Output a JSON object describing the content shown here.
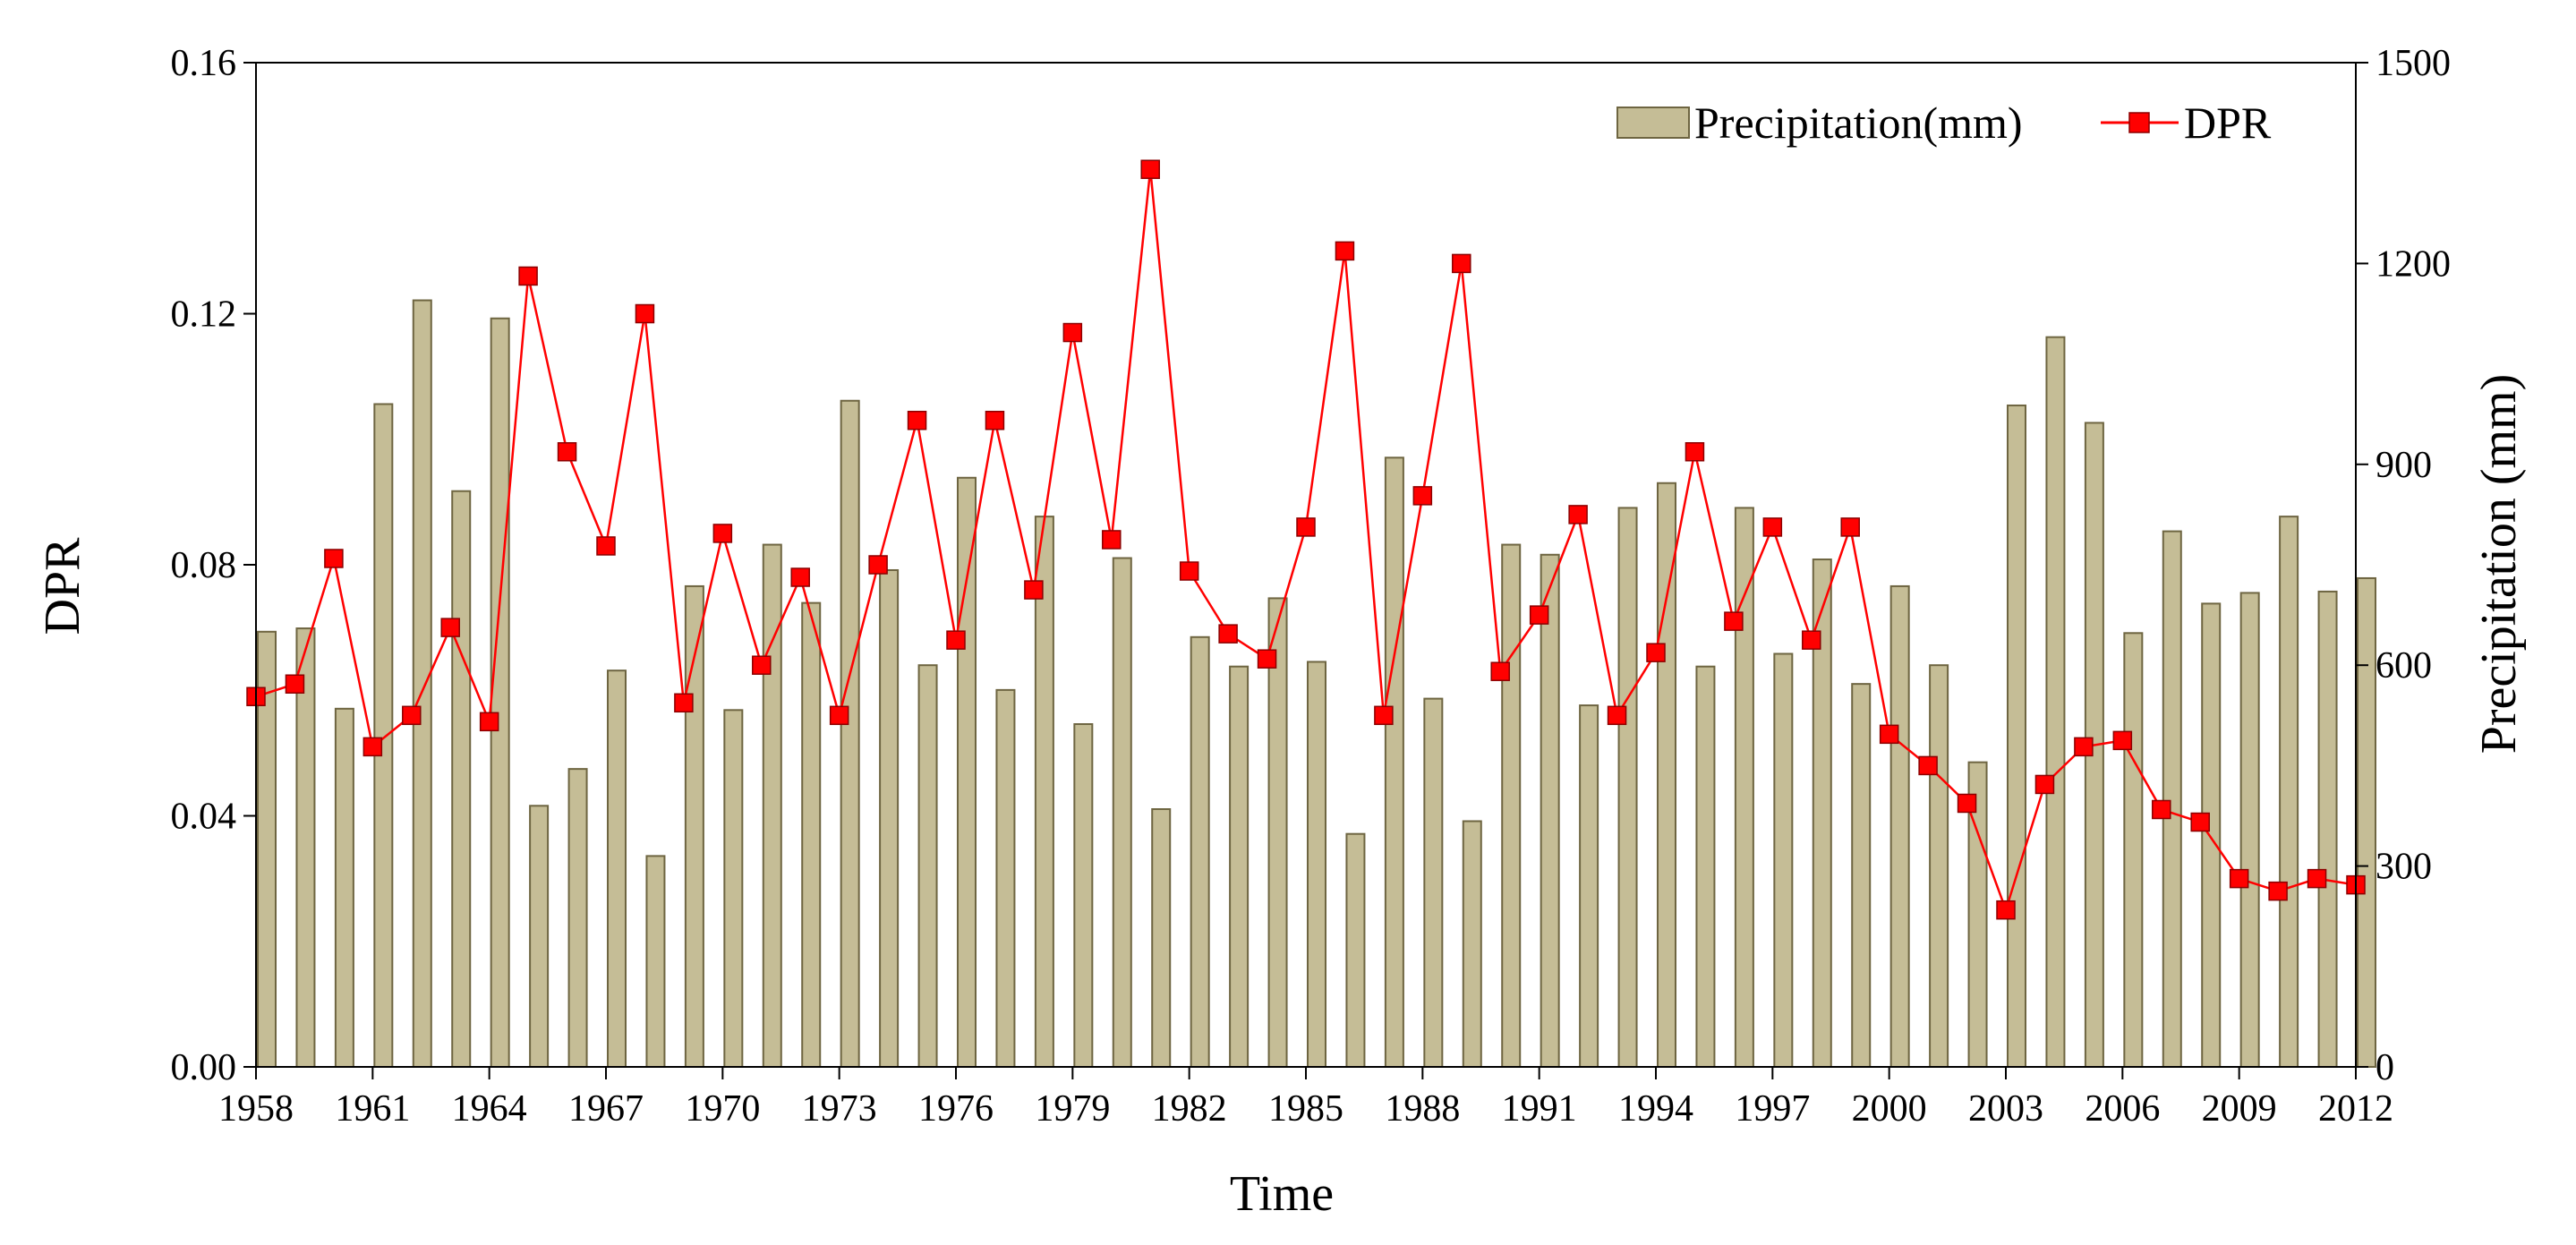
{
  "chart_data": {
    "type": "bar+line",
    "title": "",
    "xlabel": "Time",
    "ylabel_left": "DPR",
    "ylabel_right": "Precipitation (mm)",
    "ylim_left": [
      0,
      0.16
    ],
    "ylim_right": [
      0,
      1500
    ],
    "yticks_left": [
      "0.00",
      "0.04",
      "0.08",
      "0.12",
      "0.16"
    ],
    "yticks_right": [
      "0",
      "300",
      "600",
      "900",
      "1200",
      "1500"
    ],
    "xticks": [
      "1958",
      "1961",
      "1964",
      "1967",
      "1970",
      "1973",
      "1976",
      "1979",
      "1982",
      "1985",
      "1988",
      "1991",
      "1994",
      "1997",
      "2000",
      "2003",
      "2006",
      "2009",
      "2012"
    ],
    "years": [
      1958,
      1959,
      1960,
      1961,
      1962,
      1963,
      1964,
      1965,
      1966,
      1967,
      1968,
      1969,
      1970,
      1971,
      1972,
      1973,
      1974,
      1975,
      1976,
      1977,
      1978,
      1979,
      1980,
      1981,
      1982,
      1983,
      1984,
      1985,
      1986,
      1987,
      1988,
      1989,
      1990,
      1991,
      1992,
      1993,
      1994,
      1995,
      1996,
      1997,
      1998,
      1999,
      2000,
      2001,
      2002,
      2003,
      2004,
      2005,
      2006,
      2007,
      2008,
      2009,
      2010,
      2011,
      2012
    ],
    "legend_position": "top-right",
    "series": [
      {
        "name": "Precipitation(mm)",
        "type": "bar",
        "axis": "right",
        "color": "#c5bd96",
        "stroke": "#6e6541",
        "values": [
          650,
          655,
          535,
          990,
          1145,
          860,
          1118,
          390,
          445,
          592,
          315,
          718,
          533,
          780,
          693,
          995,
          742,
          600,
          880,
          563,
          822,
          512,
          760,
          385,
          642,
          598,
          700,
          605,
          348,
          910,
          550,
          367,
          780,
          765,
          540,
          835,
          872,
          598,
          835,
          617,
          758,
          572,
          718,
          600,
          455,
          988,
          1090,
          962,
          648,
          800,
          692,
          708,
          822,
          710,
          730
        ]
      },
      {
        "name": "DPR",
        "type": "line",
        "axis": "left",
        "color": "#ff0000",
        "marker": "square",
        "values": [
          0.059,
          0.061,
          0.081,
          0.051,
          0.056,
          0.07,
          0.055,
          0.126,
          0.098,
          0.083,
          0.12,
          0.058,
          0.085,
          0.064,
          0.078,
          0.056,
          0.08,
          0.103,
          0.068,
          0.103,
          0.076,
          0.117,
          0.084,
          0.143,
          0.079,
          0.069,
          0.065,
          0.086,
          0.13,
          0.056,
          0.091,
          0.128,
          0.063,
          0.072,
          0.088,
          0.056,
          0.066,
          0.098,
          0.071,
          0.086,
          0.068,
          0.086,
          0.053,
          0.048,
          0.042,
          0.025,
          0.045,
          0.051,
          0.052,
          0.041,
          0.039,
          0.03,
          0.028,
          0.03,
          0.029
        ]
      }
    ]
  }
}
